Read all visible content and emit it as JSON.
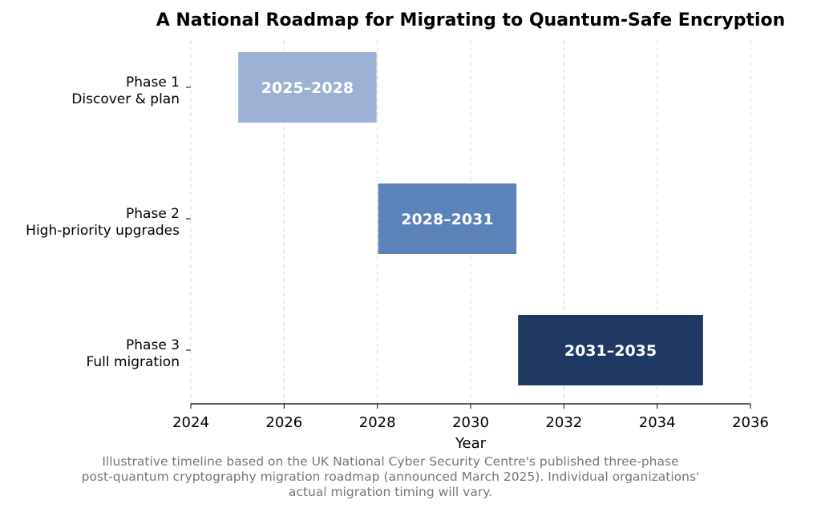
{
  "chart_data": {
    "type": "gantt",
    "title": "A National Roadmap for Migrating to Quantum-Safe Encryption",
    "xlabel": "Year",
    "ylabel": "",
    "xlim": [
      2024,
      2036
    ],
    "xticks": [
      2024,
      2026,
      2028,
      2030,
      2032,
      2034,
      2036
    ],
    "grid": "vertical dashed",
    "legend": "none",
    "phases": [
      {
        "label_line1": "Phase 1",
        "label_line2": "Discover & plan",
        "start": 2025,
        "end": 2028,
        "bar_label": "2025–2028",
        "color": "#9db1d4"
      },
      {
        "label_line1": "Phase 2",
        "label_line2": "High-priority upgrades",
        "start": 2028,
        "end": 2031,
        "bar_label": "2028–2031",
        "color": "#5b82b9"
      },
      {
        "label_line1": "Phase 3",
        "label_line2": "Full migration",
        "start": 2031,
        "end": 2035,
        "bar_label": "2031–2035",
        "color": "#1f3864"
      }
    ]
  },
  "caption": {
    "line1": "Illustrative timeline based on the UK National Cyber Security Centre's published three-phase",
    "line2": "post-quantum cryptography migration roadmap (announced March 2025). Individual organizations'",
    "line3": "actual migration timing will vary."
  }
}
